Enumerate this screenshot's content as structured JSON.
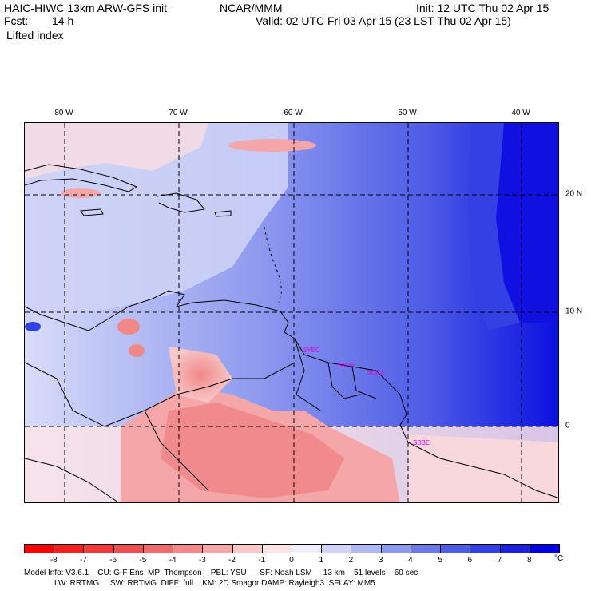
{
  "header": {
    "model_title": "HAIC-HIWC 13km ARW-GFS init",
    "org": "NCAR/MMM",
    "init": "Init: 12 UTC Thu 02 Apr 15",
    "fcst_label": "Fcst:",
    "fcst_value": "14 h",
    "valid": "Valid: 02 UTC Fri 03 Apr 15 (23 LST Thu 02 Apr 15)",
    "field": "Lifted index"
  },
  "map": {
    "lon_labels": [
      "80 W",
      "70 W",
      "60 W",
      "50 W",
      "40 W"
    ],
    "lat_labels": [
      "20 N",
      "10 N",
      "0"
    ],
    "stations": [
      "SYEC",
      "SMJP",
      "SOCA",
      "SBBE"
    ],
    "colors": {
      "strong_stable": "#1010e0",
      "stable": "#6a78e8",
      "weak_stable": "#b8c0f4",
      "neutral": "#f4f4ff",
      "weak_unstable": "#f8c8c8",
      "unstable": "#f08888",
      "land_outline": "#000000",
      "grid": "#000000",
      "station_text": "#e000e0"
    }
  },
  "colorbar": {
    "labels": [
      "-8",
      "-7",
      "-6",
      "-5",
      "-4",
      "-3",
      "-2",
      "-1",
      "0",
      "1",
      "2",
      "3",
      "4",
      "5",
      "6",
      "7",
      "8"
    ],
    "unit": "°C",
    "colors": [
      "#ff0000",
      "#f42020",
      "#f03a3a",
      "#f05050",
      "#f06a6a",
      "#f48888",
      "#f6a8a8",
      "#f8c8c8",
      "#fce4e4",
      "#eeeeff",
      "#d0d4f8",
      "#b0b8f4",
      "#8c98ee",
      "#6a78e8",
      "#4e5ce6",
      "#3340e4",
      "#1a24e0",
      "#0000e0"
    ]
  },
  "footer": {
    "line1": "Model Info: V3.6.1    CU: G-F Ens  MP: Thompson    PBL: YSU      SF: Noah LSM     13 km    51 levels    60 sec",
    "line2": "LW: RRTMG     SW: RRTMG  DIFF: full    KM: 2D Smagor DAMP: Rayleigh3  SFLAY: MM5"
  }
}
